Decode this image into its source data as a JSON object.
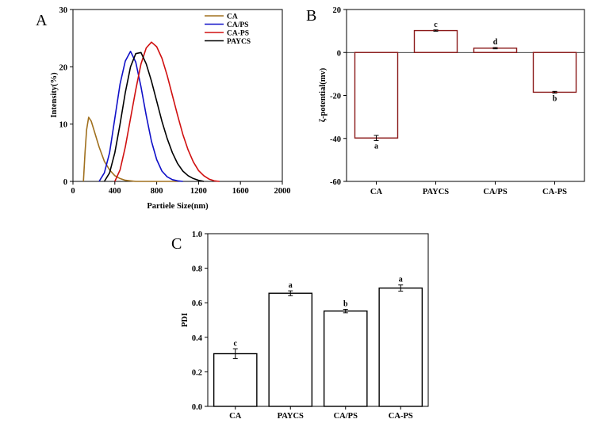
{
  "chart_data": [
    {
      "panel": "A",
      "type": "line",
      "xlabel": "Partiele Size(nm)",
      "ylabel": "Intensity(%)",
      "xlim": [
        0,
        2000
      ],
      "ylim": [
        0,
        30
      ],
      "xticks": [
        0,
        400,
        800,
        1200,
        1600,
        2000
      ],
      "yticks": [
        0,
        10,
        20,
        30
      ],
      "legend_position": "top-right",
      "series": [
        {
          "name": "CA",
          "color": "#a0701e",
          "x": [
            100,
            115,
            130,
            150,
            175,
            200,
            250,
            300,
            350,
            400,
            450,
            500,
            550,
            600,
            700,
            800,
            900,
            1000
          ],
          "y": [
            0,
            5,
            9,
            11.2,
            10.5,
            9.0,
            6.0,
            3.5,
            2.0,
            1.0,
            0.5,
            0.2,
            0.1,
            0,
            0,
            0,
            0,
            0
          ]
        },
        {
          "name": "CA/PS",
          "color": "#1010c8",
          "x": [
            250,
            300,
            350,
            400,
            450,
            500,
            550,
            600,
            650,
            700,
            750,
            800,
            850,
            900,
            950,
            1000,
            1050
          ],
          "y": [
            0,
            1.5,
            5,
            11,
            17,
            21,
            22.7,
            20.8,
            16.5,
            11.5,
            7,
            3.8,
            1.8,
            0.8,
            0.3,
            0.1,
            0
          ]
        },
        {
          "name": "CA-PS",
          "color": "#d01010",
          "x": [
            400,
            450,
            500,
            550,
            600,
            650,
            700,
            750,
            800,
            850,
            900,
            950,
            1000,
            1050,
            1100,
            1150,
            1200,
            1250,
            1300,
            1350,
            1400
          ],
          "y": [
            0,
            2,
            6,
            11,
            16,
            20.5,
            23.3,
            24.3,
            23.5,
            21.5,
            18.5,
            15,
            11.5,
            8.2,
            5.5,
            3.4,
            1.9,
            1,
            0.4,
            0.1,
            0
          ]
        },
        {
          "name": "PAYCS",
          "color": "#000000",
          "x": [
            300,
            350,
            400,
            450,
            500,
            550,
            600,
            650,
            700,
            750,
            800,
            850,
            900,
            950,
            1000,
            1050,
            1100,
            1150,
            1200,
            1250
          ],
          "y": [
            0,
            1.5,
            5,
            10,
            15.5,
            20,
            22.3,
            22.5,
            20.5,
            17.5,
            14,
            10.5,
            7.5,
            5,
            3.1,
            1.8,
            1,
            0.5,
            0.2,
            0
          ]
        }
      ]
    },
    {
      "panel": "B",
      "type": "bar",
      "xlabel": "",
      "ylabel": "ζ-potential(mv)",
      "ylim": [
        -60,
        20
      ],
      "yticks": [
        -60,
        -40,
        -20,
        0,
        20
      ],
      "bar_color": "#8b1a1a",
      "categories": [
        "CA",
        "PAYCS",
        "CA/PS",
        "CA-PS"
      ],
      "values": [
        -39.8,
        10.2,
        2.0,
        -18.5
      ],
      "errors": [
        1.2,
        0.3,
        0.3,
        0.4
      ],
      "letters": [
        "a",
        "c",
        "d",
        "b"
      ]
    },
    {
      "panel": "C",
      "type": "bar",
      "xlabel": "",
      "ylabel": "PDI",
      "ylim": [
        0,
        1.0
      ],
      "yticks": [
        "0.0",
        "0.2",
        "0.4",
        "0.6",
        "0.8",
        "1.0"
      ],
      "bar_color": "#000000",
      "categories": [
        "CA",
        "PAYCS",
        "CA/PS",
        "CA-PS"
      ],
      "values": [
        0.305,
        0.655,
        0.552,
        0.685
      ],
      "errors": [
        0.028,
        0.014,
        0.01,
        0.018
      ],
      "letters": [
        "c",
        "a",
        "b",
        "a"
      ]
    }
  ]
}
